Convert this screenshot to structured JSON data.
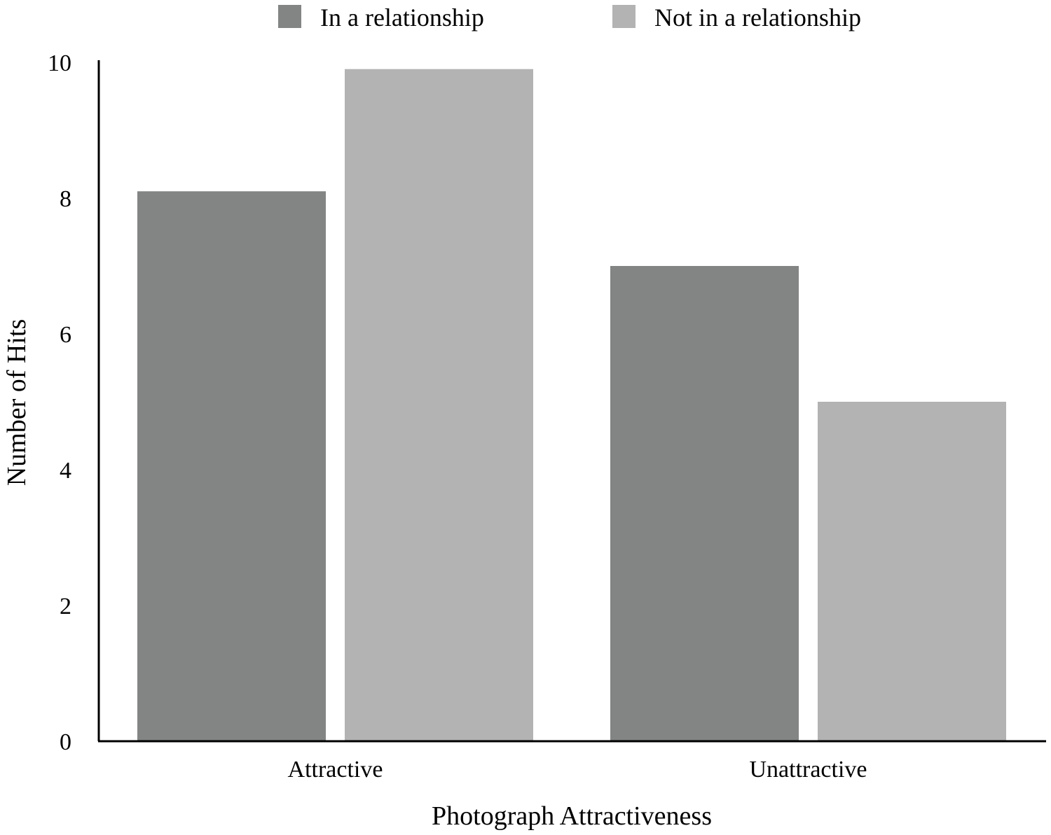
{
  "chart_data": {
    "type": "bar",
    "categories": [
      "Attractive",
      "Unattractive"
    ],
    "series": [
      {
        "name": "In a relationship",
        "values": [
          8.1,
          7.0
        ],
        "color": "#828584"
      },
      {
        "name": "Not in a relationship",
        "values": [
          9.9,
          5.0
        ],
        "color": "#b3b3b3"
      }
    ],
    "title": "",
    "xlabel": "Photograph Attractiveness",
    "ylabel": "Number of Hits",
    "ylim": [
      0,
      10
    ],
    "yticks": [
      0,
      2,
      4,
      6,
      8,
      10
    ],
    "ytick_labels": [
      "0",
      "2",
      "4",
      "6",
      "8",
      "10"
    ],
    "grid": false,
    "legend_position": "top-center"
  }
}
